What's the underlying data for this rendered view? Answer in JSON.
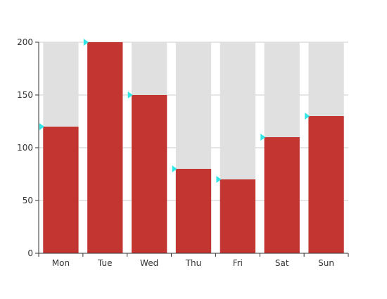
{
  "chart_data": {
    "type": "bar",
    "categories": [
      "Mon",
      "Tue",
      "Wed",
      "Thu",
      "Fri",
      "Sat",
      "Sun"
    ],
    "values": [
      120,
      200,
      150,
      80,
      70,
      110,
      130
    ],
    "background_value": 200,
    "ylim": [
      0,
      200
    ],
    "yticks": [
      0,
      50,
      100,
      150,
      200
    ],
    "grid": true,
    "colors": {
      "bar": "#c23531",
      "bar_background": "#e0e0e0",
      "marker": "#33e6e6",
      "axis": "#333333",
      "grid": "#cccccc"
    }
  }
}
